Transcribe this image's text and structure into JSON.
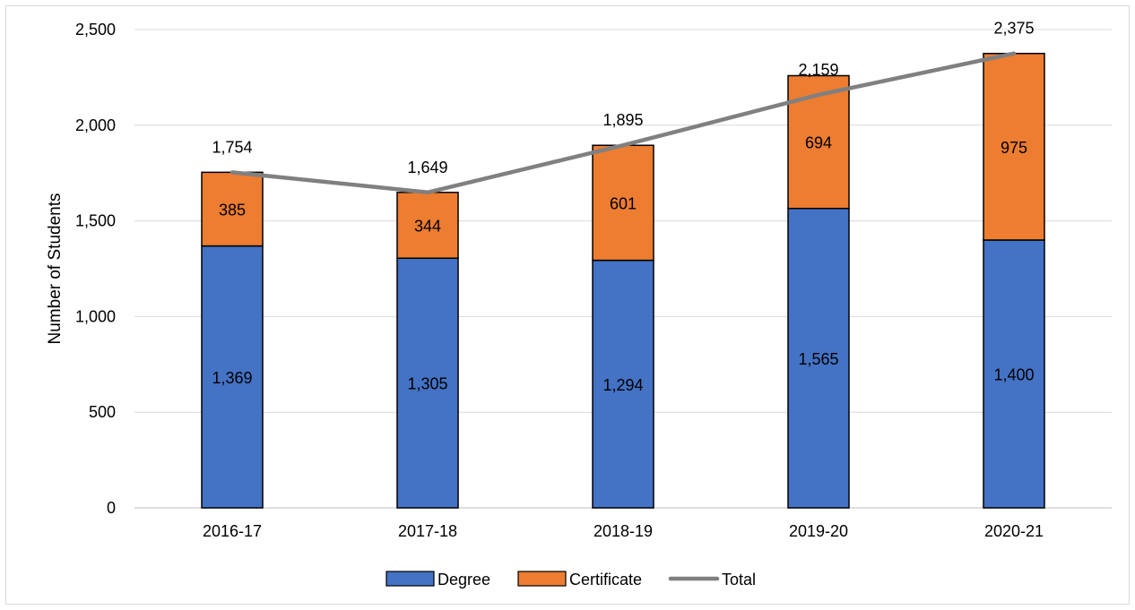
{
  "chart_data": {
    "type": "bar",
    "stacked": true,
    "categories": [
      "2016-17",
      "2017-18",
      "2018-19",
      "2019-20",
      "2020-21"
    ],
    "series": [
      {
        "name": "Degree",
        "type": "bar",
        "color": "#4472c4",
        "values": [
          1369,
          1305,
          1294,
          1565,
          1400
        ]
      },
      {
        "name": "Certificate",
        "type": "bar",
        "color": "#ed7d31",
        "values": [
          385,
          344,
          601,
          694,
          975
        ]
      },
      {
        "name": "Total",
        "type": "line",
        "color": "#808080",
        "values": [
          1754,
          1649,
          1895,
          2159,
          2375
        ]
      }
    ],
    "data_labels": {
      "Degree": [
        "1,369",
        "1,305",
        "1,294",
        "1,565",
        "1,400"
      ],
      "Certificate": [
        "385",
        "344",
        "601",
        "694",
        "975"
      ],
      "Total": [
        "1,754",
        "1,649",
        "1,895",
        "2,159",
        "2,375"
      ]
    },
    "ylabel": "Number of Students",
    "xlabel": "",
    "ylim": [
      0,
      2500
    ],
    "yticks": [
      0,
      500,
      1000,
      1500,
      2000,
      2500
    ],
    "ytick_labels": [
      "0",
      "500",
      "1,000",
      "1,500",
      "2,000",
      "2,500"
    ],
    "grid": true,
    "legend_position": "bottom"
  }
}
